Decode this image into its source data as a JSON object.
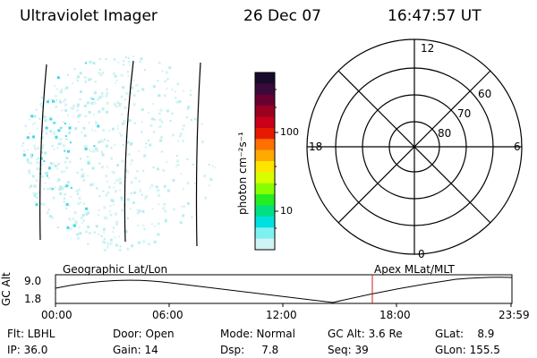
{
  "header": {
    "title": "Ultraviolet Imager",
    "date": "26 Dec 07",
    "time": "16:47:57 UT"
  },
  "colorbar": {
    "unit_label": "photon cm⁻²s⁻¹",
    "tick_100": "100",
    "tick_10": "10",
    "colors_top_to_bottom": [
      "#1a0a2a",
      "#3b0a3c",
      "#6a0030",
      "#9a0020",
      "#c8001a",
      "#e61a00",
      "#ff7000",
      "#ffaa00",
      "#ffe400",
      "#d8ff00",
      "#88ff00",
      "#22ee22",
      "#00e080",
      "#00e0e0",
      "#7ff0f0",
      "#d0f4f4"
    ]
  },
  "polar": {
    "label_top": "12",
    "label_left": "18",
    "label_right": "6",
    "label_bottom": "0",
    "ring_60": "60",
    "ring_70": "70",
    "ring_80": "80"
  },
  "timeline": {
    "left_label": "Geographic Lat/Lon",
    "right_label": "Apex MLat/MLT",
    "axis_title": "GC Alt",
    "y_top": "9.0",
    "y_bottom": "1.8",
    "x_ticks": [
      "00:00",
      "06:00",
      "12:00",
      "18:00",
      "23:59"
    ],
    "marker_color": "#cc2020"
  },
  "info": {
    "flt": "Flt: LBHL",
    "ip": "IP: 36.0",
    "door": "Door: Open",
    "gain": "Gain: 14",
    "mode": "Mode: Normal",
    "dsp": "Dsp:     7.8",
    "gcalt": "GC Alt: 3.6 Re",
    "seq": "Seq: 39",
    "glat": "GLat:    8.9",
    "glon": "GLon: 155.5"
  }
}
